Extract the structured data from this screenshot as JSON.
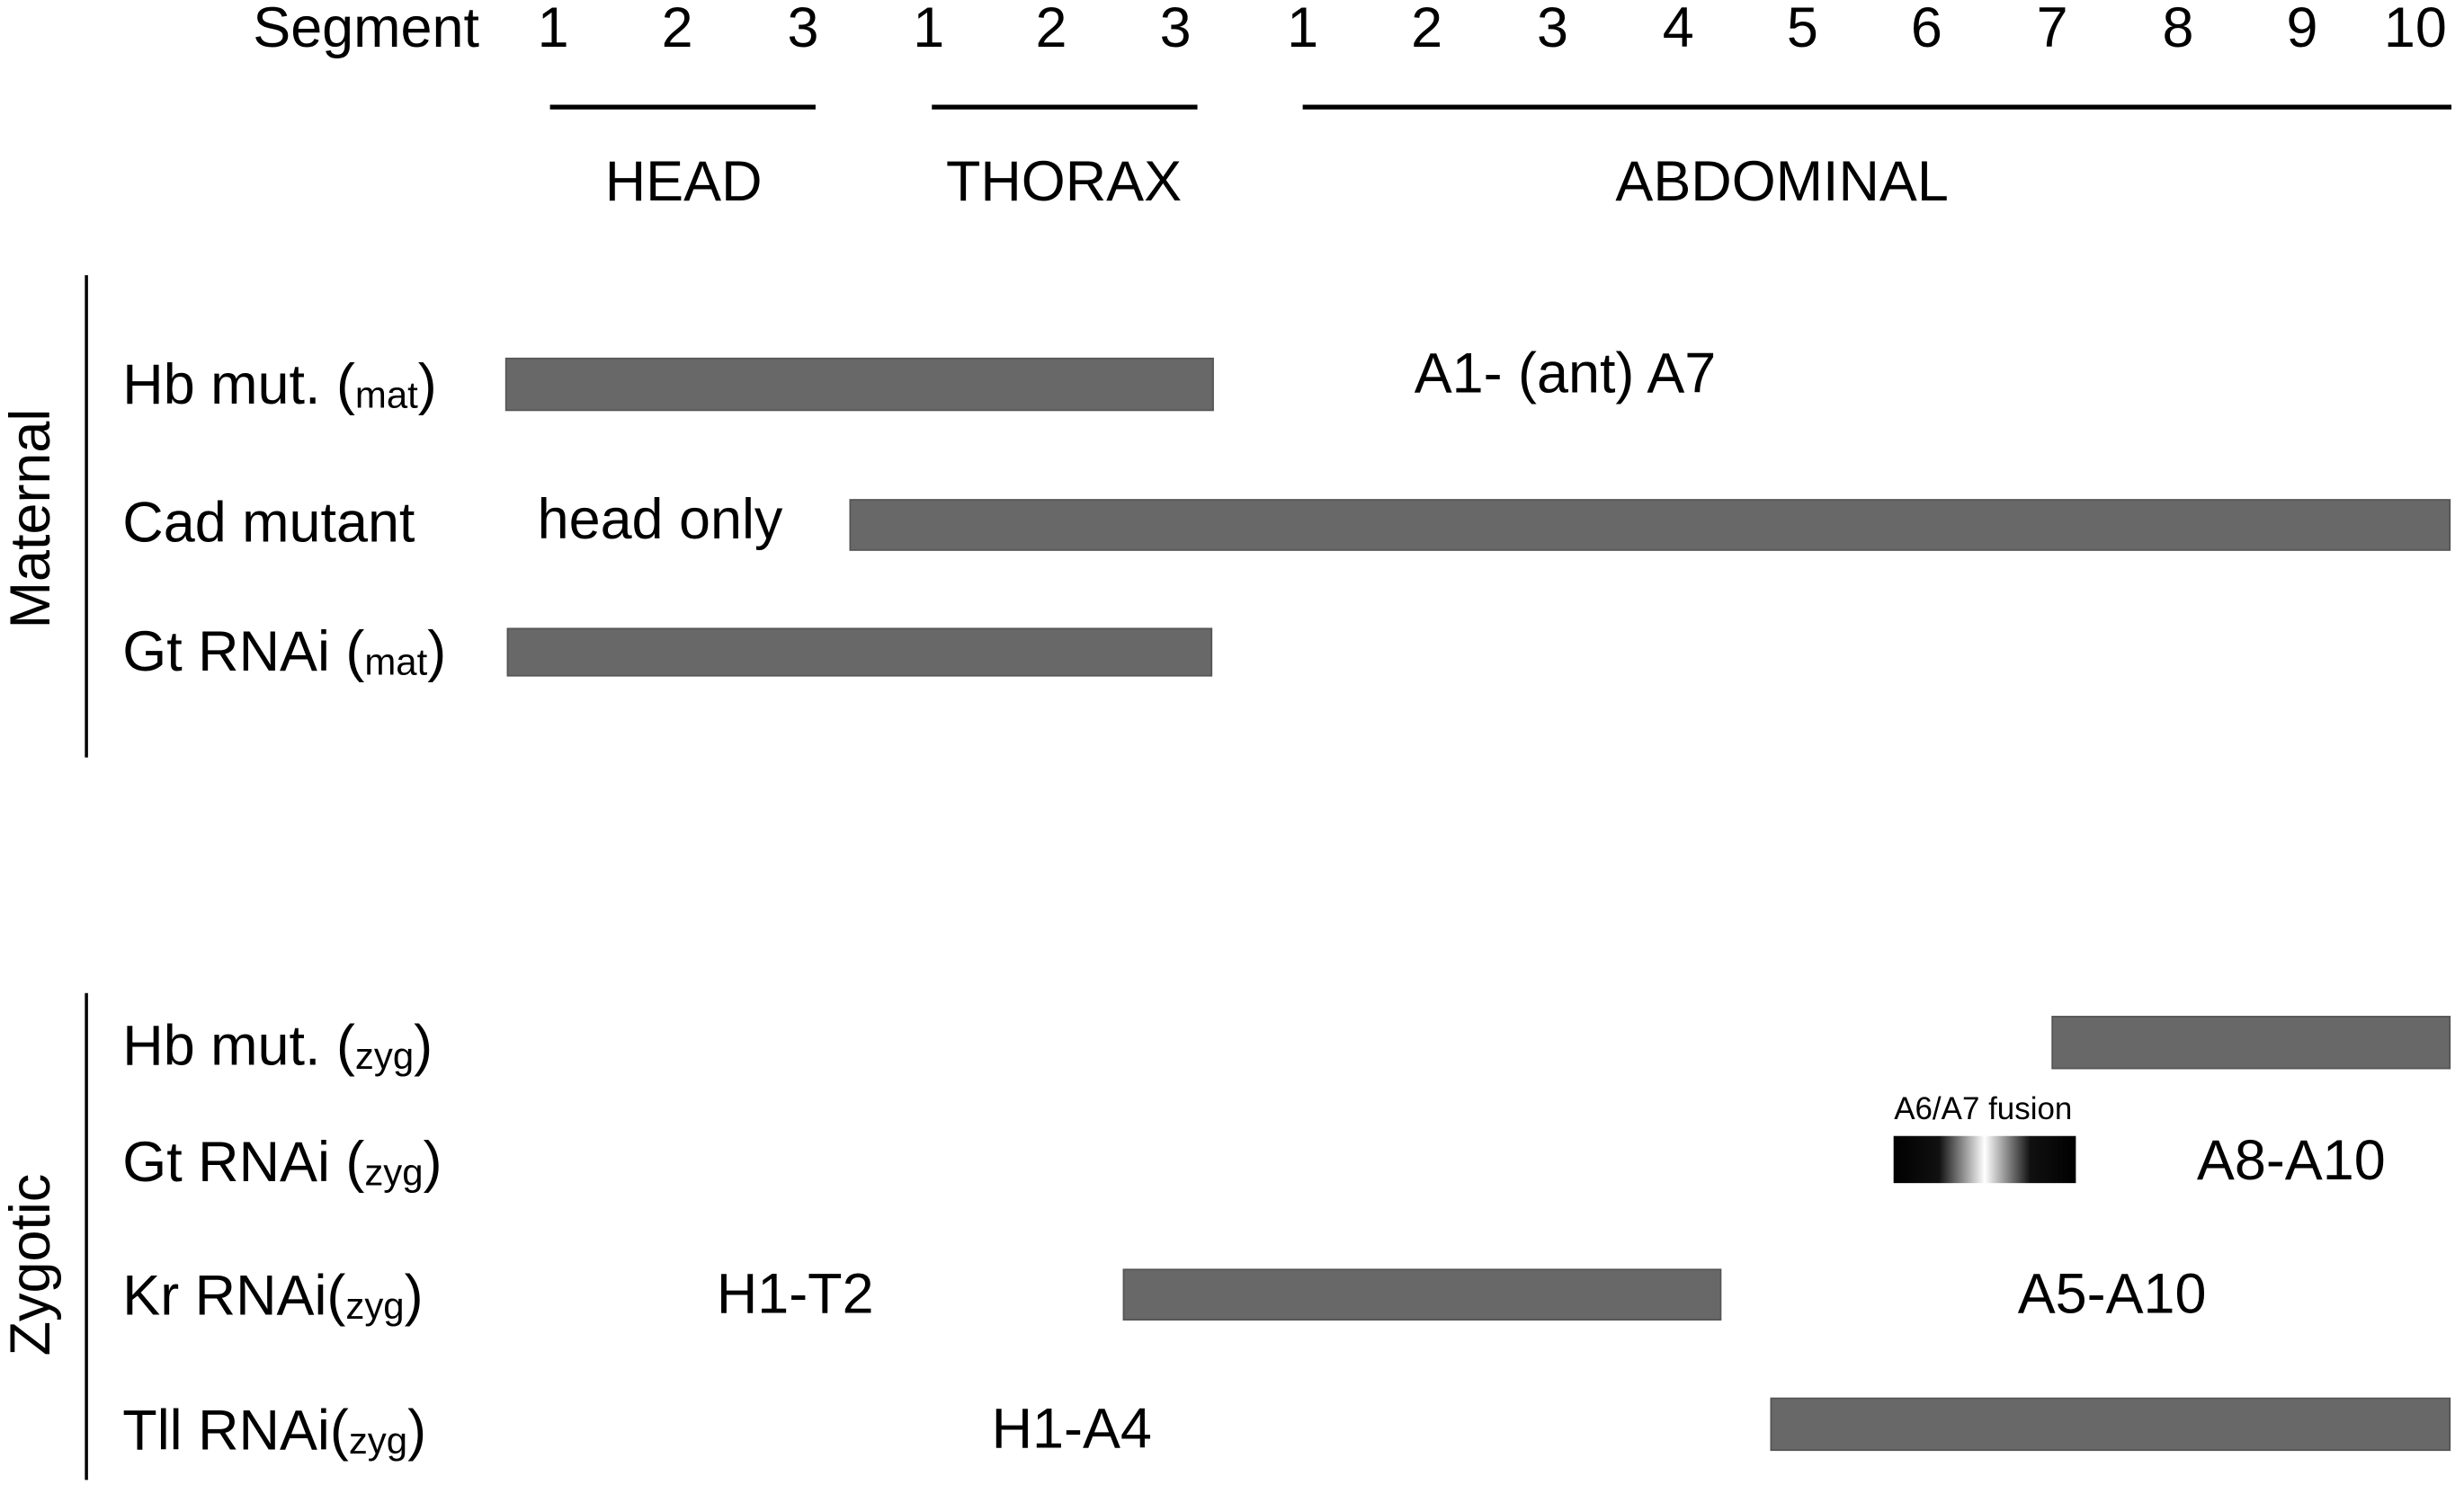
{
  "header": {
    "label": "Segment",
    "groups": [
      {
        "name": "HEAD",
        "segments": [
          "1",
          "2",
          "3"
        ]
      },
      {
        "name": "THORAX",
        "segments": [
          "1",
          "2",
          "3"
        ]
      },
      {
        "name": "ABDOMINAL",
        "segments": [
          "1",
          "2",
          "3",
          "4",
          "5",
          "6",
          "7",
          "8",
          "9",
          "10"
        ]
      }
    ]
  },
  "sections": [
    {
      "name": "Maternal",
      "rows": [
        {
          "prefix": "Hb mut. (",
          "sub": "mat",
          "suffix": ")",
          "note": "A1- (ant) A7"
        },
        {
          "prefix": "Cad mutant",
          "note": "head only"
        },
        {
          "prefix": "Gt RNAi (",
          "sub": "mat",
          "suffix": ")"
        }
      ]
    },
    {
      "name": "Zygotic",
      "rows": [
        {
          "prefix": "Hb mut. (",
          "sub": "zyg",
          "suffix": ")"
        },
        {
          "prefix": "Gt RNAi (",
          "sub": "zyg",
          "suffix": ")",
          "fusion": "A6/A7 fusion",
          "note": "A8-A10"
        },
        {
          "prefix": "Kr RNAi(",
          "sub": "zyg",
          "suffix": ")",
          "note": "H1-T2",
          "note2": "A5-A10"
        },
        {
          "prefix": "Tll RNAi(",
          "sub": "zyg",
          "suffix": ")",
          "note": "H1-A4"
        }
      ]
    }
  ]
}
